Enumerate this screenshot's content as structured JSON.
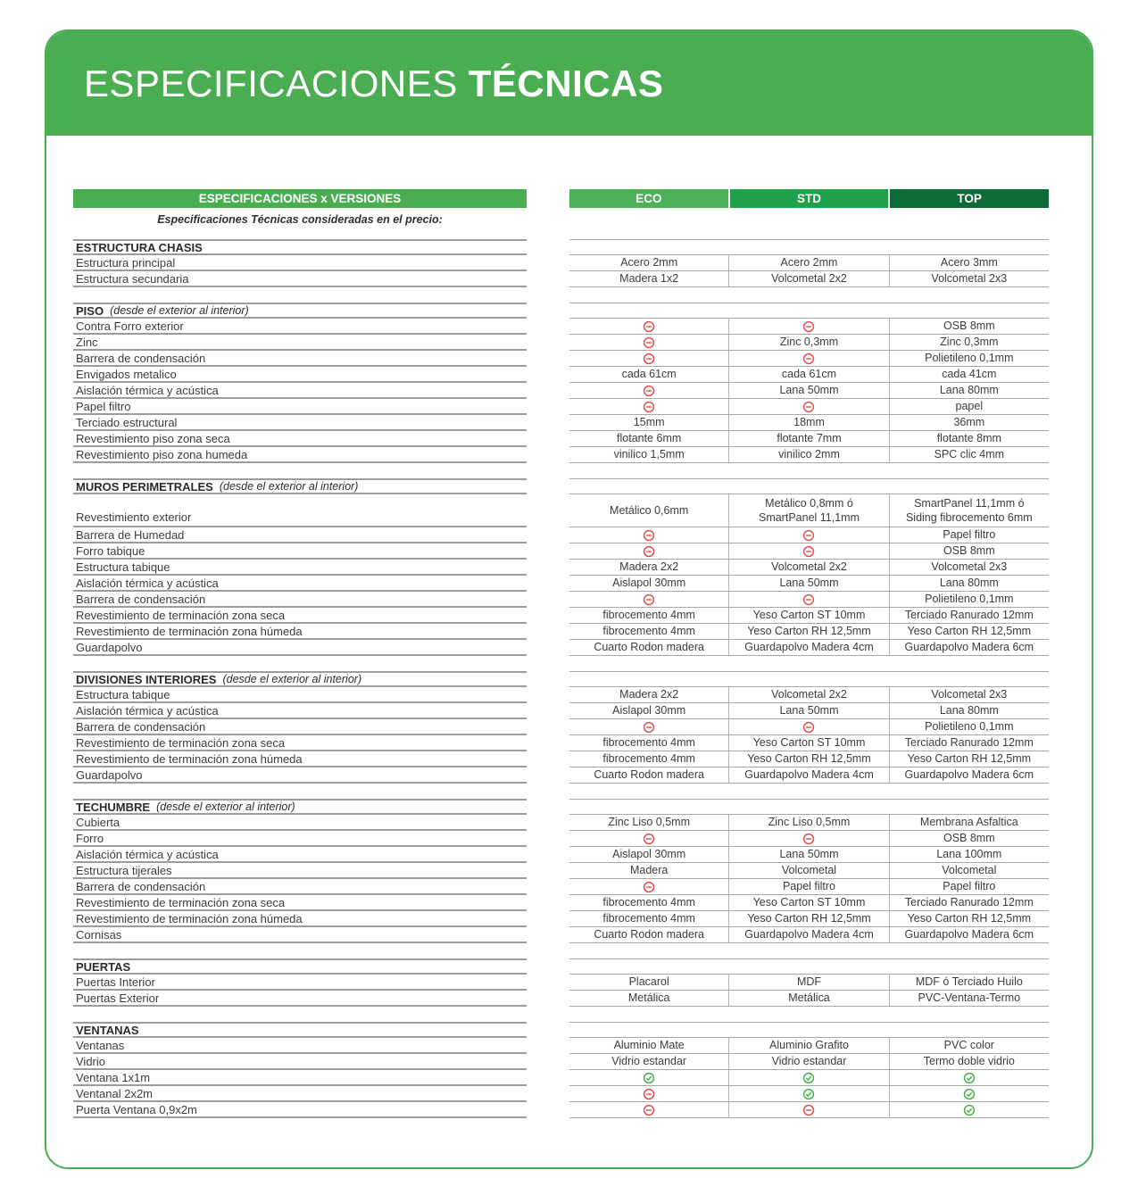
{
  "banner": {
    "title_regular": "ESPECIFICACIONES",
    "title_bold": "TÉCNICAS"
  },
  "left_header": "ESPECIFICACIONES x VERSIONES",
  "subtitle": "Especificaciones Técnicas consideradas en el precio:",
  "columns": [
    "ECO",
    "STD",
    "TOP"
  ],
  "colors": {
    "banner_green": "#4bad52",
    "eco_header": "#4fb05a",
    "std_header": "#1fa14c",
    "top_header": "#0e6b36",
    "excluded_icon_red": "#e2504c",
    "included_icon_green": "#43b049"
  },
  "legend": {
    "[-]": "excluded-icon (red circled minus)",
    "[+]": "included-icon (green circled check)"
  },
  "sections": [
    {
      "title": "ESTRUCTURA CHASIS",
      "note": "",
      "rows": [
        {
          "label": "Estructura principal",
          "values": [
            "Acero 2mm",
            "Acero 2mm",
            "Acero 3mm"
          ]
        },
        {
          "label": "Estructura secundaria",
          "values": [
            "Madera 1x2",
            "Volcometal 2x2",
            "Volcometal 2x3"
          ]
        }
      ]
    },
    {
      "title": "PISO",
      "note": "(desde el exterior al interior)",
      "rows": [
        {
          "label": "Contra Forro exterior",
          "values": [
            "[-]",
            "[-]",
            "OSB 8mm"
          ]
        },
        {
          "label": "Zinc",
          "values": [
            "[-]",
            "Zinc 0,3mm",
            "Zinc 0,3mm"
          ]
        },
        {
          "label": "Barrera de condensación",
          "values": [
            "[-]",
            "[-]",
            "Polietileno 0,1mm"
          ]
        },
        {
          "label": "Envigados metalico",
          "values": [
            "cada 61cm",
            "cada 61cm",
            "cada 41cm"
          ]
        },
        {
          "label": "Aislación térmica y acústica",
          "values": [
            "[-]",
            "Lana 50mm",
            "Lana 80mm"
          ]
        },
        {
          "label": "Papel filtro",
          "values": [
            "[-]",
            "[-]",
            "papel"
          ]
        },
        {
          "label": "Terciado estructural",
          "values": [
            "15mm",
            "18mm",
            "36mm"
          ]
        },
        {
          "label": "Revestimiento piso zona seca",
          "values": [
            "flotante 6mm",
            "flotante 7mm",
            "flotante 8mm"
          ]
        },
        {
          "label": "Revestimiento piso zona humeda",
          "values": [
            "vinilico 1,5mm",
            "vinilico 2mm",
            "SPC clic 4mm"
          ]
        }
      ]
    },
    {
      "title": "MUROS PERIMETRALES",
      "note": "(desde el exterior al interior)",
      "rows": [
        {
          "label": "Revestimiento exterior",
          "tall": true,
          "values": [
            "Metálico 0,6mm",
            "Metálico 0,8mm ó\nSmartPanel 11,1mm",
            "SmartPanel 11,1mm ó\nSiding fibrocemento 6mm"
          ]
        },
        {
          "label": "Barrera de Humedad",
          "values": [
            "[-]",
            "[-]",
            "Papel filtro"
          ]
        },
        {
          "label": "Forro tabique",
          "values": [
            "[-]",
            "[-]",
            "OSB 8mm"
          ]
        },
        {
          "label": "Estructura tabique",
          "values": [
            "Madera 2x2",
            "Volcometal 2x2",
            "Volcometal 2x3"
          ]
        },
        {
          "label": "Aislación térmica y acústica",
          "values": [
            "Aislapol 30mm",
            "Lana 50mm",
            "Lana 80mm"
          ]
        },
        {
          "label": "Barrera de condensación",
          "values": [
            "[-]",
            "[-]",
            "Polietileno 0,1mm"
          ]
        },
        {
          "label": "Revestimiento de terminación zona seca",
          "values": [
            "fibrocemento 4mm",
            "Yeso Carton ST 10mm",
            "Terciado Ranurado 12mm"
          ]
        },
        {
          "label": "Revestimiento de terminación zona húmeda",
          "values": [
            "fibrocemento 4mm",
            "Yeso Carton RH 12,5mm",
            "Yeso Carton RH 12,5mm"
          ]
        },
        {
          "label": "Guardapolvo",
          "values": [
            "Cuarto Rodon madera",
            "Guardapolvo Madera 4cm",
            "Guardapolvo Madera 6cm"
          ]
        }
      ]
    },
    {
      "title": "DIVISIONES INTERIORES",
      "note": "(desde el exterior al interior)",
      "rows": [
        {
          "label": "Estructura tabique",
          "values": [
            "Madera 2x2",
            "Volcometal 2x2",
            "Volcometal 2x3"
          ]
        },
        {
          "label": "Aislación térmica y acústica",
          "values": [
            "Aislapol 30mm",
            "Lana 50mm",
            "Lana 80mm"
          ]
        },
        {
          "label": "Barrera de condensación",
          "values": [
            "[-]",
            "[-]",
            "Polietileno 0,1mm"
          ]
        },
        {
          "label": "Revestimiento de terminación zona seca",
          "values": [
            "fibrocemento 4mm",
            "Yeso Carton ST 10mm",
            "Terciado Ranurado 12mm"
          ]
        },
        {
          "label": "Revestimiento de terminación zona húmeda",
          "values": [
            "fibrocemento 4mm",
            "Yeso Carton RH 12,5mm",
            "Yeso Carton RH 12,5mm"
          ]
        },
        {
          "label": "Guardapolvo",
          "values": [
            "Cuarto Rodon madera",
            "Guardapolvo Madera 4cm",
            "Guardapolvo Madera 6cm"
          ]
        }
      ]
    },
    {
      "title": "TECHUMBRE",
      "note": "(desde el exterior al interior)",
      "rows": [
        {
          "label": "Cubierta",
          "values": [
            "Zinc Liso 0,5mm",
            "Zinc Liso 0,5mm",
            "Membrana Asfaltica"
          ]
        },
        {
          "label": "Forro",
          "values": [
            "[-]",
            "[-]",
            "OSB 8mm"
          ]
        },
        {
          "label": "Aislación térmica y acústica",
          "values": [
            "Aislapol 30mm",
            "Lana 50mm",
            "Lana 100mm"
          ]
        },
        {
          "label": "Estructura tijerales",
          "values": [
            "Madera",
            "Volcometal",
            "Volcometal"
          ]
        },
        {
          "label": "Barrera de condensación",
          "values": [
            "[-]",
            "Papel filtro",
            "Papel filtro"
          ]
        },
        {
          "label": "Revestimiento de terminación zona seca",
          "values": [
            "fibrocemento 4mm",
            "Yeso Carton ST 10mm",
            "Terciado Ranurado 12mm"
          ]
        },
        {
          "label": "Revestimiento de terminación zona húmeda",
          "values": [
            "fibrocemento 4mm",
            "Yeso Carton RH 12,5mm",
            "Yeso Carton RH 12,5mm"
          ]
        },
        {
          "label": "Cornisas",
          "values": [
            "Cuarto Rodon madera",
            "Guardapolvo Madera 4cm",
            "Guardapolvo Madera 6cm"
          ]
        }
      ]
    },
    {
      "title": "PUERTAS",
      "note": "",
      "rows": [
        {
          "label": "Puertas Interior",
          "values": [
            "Placarol",
            "MDF",
            "MDF ó Terciado Huilo"
          ]
        },
        {
          "label": "Puertas Exterior",
          "values": [
            "Metálica",
            "Metálica",
            "PVC-Ventana-Termo"
          ]
        }
      ]
    },
    {
      "title": "VENTANAS",
      "note": "",
      "rows": [
        {
          "label": "Ventanas",
          "values": [
            "Aluminio Mate",
            "Aluminio Grafito",
            "PVC color"
          ]
        },
        {
          "label": "Vidrio",
          "values": [
            "Vidrio estandar",
            "Vidrio estandar",
            "Termo doble vidrio"
          ]
        },
        {
          "label": "Ventana 1x1m",
          "values": [
            "[+]",
            "[+]",
            "[+]"
          ]
        },
        {
          "label": "Ventanal 2x2m",
          "values": [
            "[-]",
            "[+]",
            "[+]"
          ]
        },
        {
          "label": "Puerta Ventana 0,9x2m",
          "values": [
            "[-]",
            "[-]",
            "[+]"
          ]
        }
      ]
    }
  ]
}
